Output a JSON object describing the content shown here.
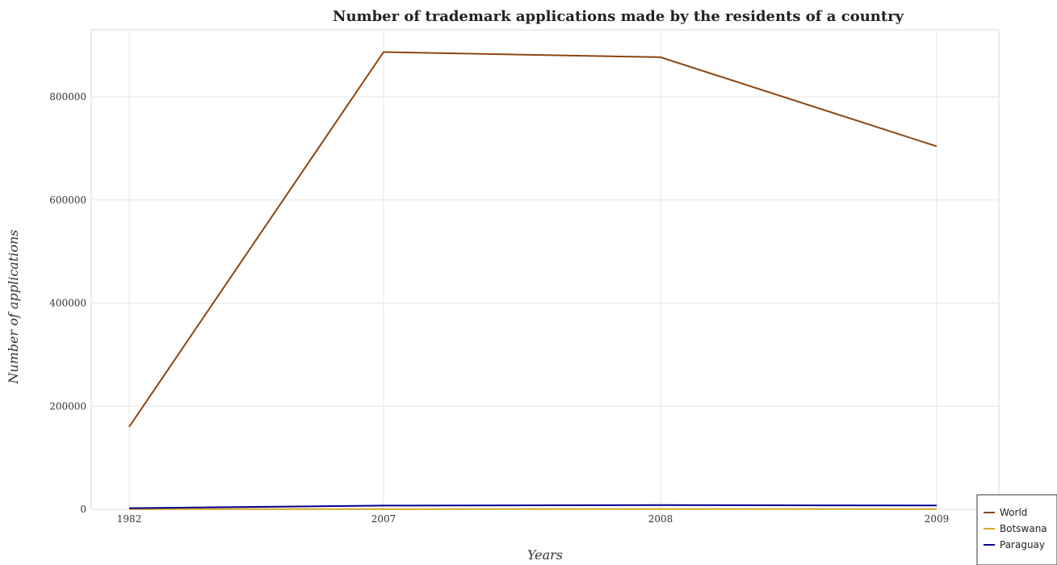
{
  "chart_data": {
    "type": "line",
    "title": "Number of trademark applications made by the residents of a country",
    "xlabel": "Years",
    "ylabel": "Number of applications",
    "categories": [
      "1982",
      "2007",
      "2008",
      "2009"
    ],
    "ylim": [
      0,
      930000
    ],
    "yticks": [
      0,
      200000,
      400000,
      600000,
      800000
    ],
    "ytick_labels": [
      "0",
      "200000",
      "400000",
      "600000",
      "800000"
    ],
    "grid": true,
    "legend_position": "bottom-right",
    "series": [
      {
        "name": "World",
        "color": "#8B4513",
        "values": [
          160000,
          887000,
          877000,
          704000
        ]
      },
      {
        "name": "Botswana",
        "color": "#DAA520",
        "values": [
          400,
          500,
          700,
          500
        ]
      },
      {
        "name": "Paraguay",
        "color": "#00008B",
        "values": [
          2200,
          7200,
          8200,
          7300
        ]
      }
    ]
  }
}
